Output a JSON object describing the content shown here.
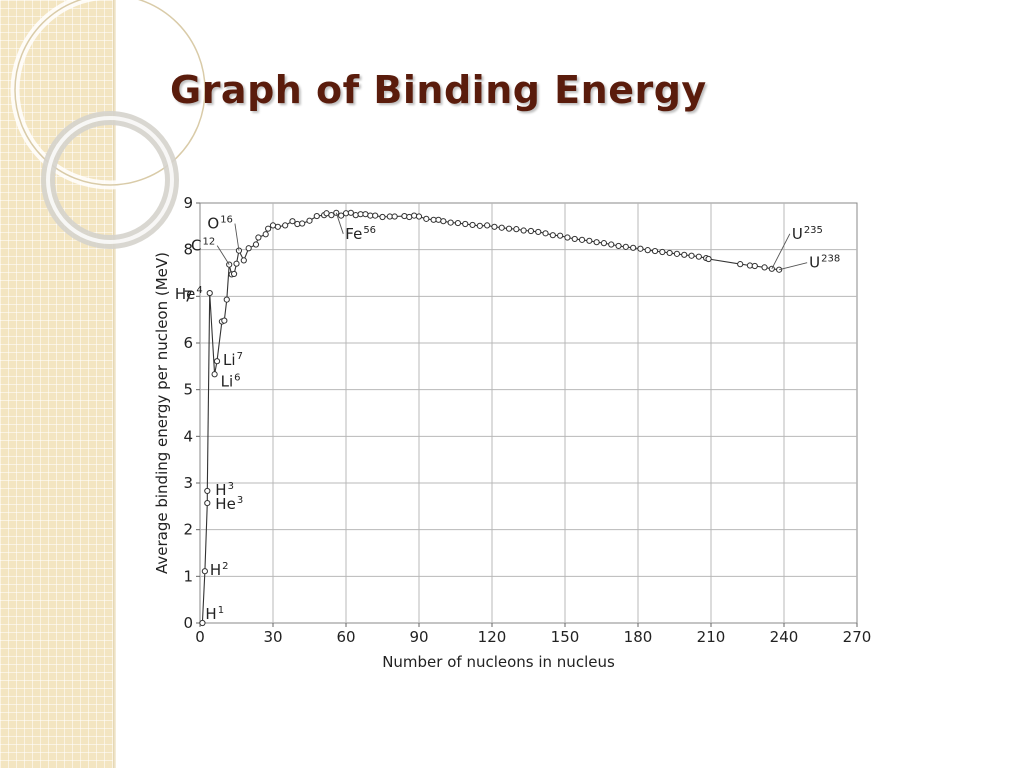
{
  "slide": {
    "title": "Graph of Binding Energy"
  },
  "colors": {
    "title": "#5a1c0c",
    "side_band": "#f3e5c1",
    "grid": "#b8b8b8",
    "curve": "#333333"
  },
  "chart_data": {
    "type": "line",
    "title": "",
    "xlabel": "Number of nucleons in nucleus",
    "ylabel": "Average binding energy per nucleon (MeV)",
    "xlim": [
      0,
      270
    ],
    "ylim": [
      0,
      9
    ],
    "xticks": [
      0,
      30,
      60,
      90,
      120,
      150,
      180,
      210,
      240,
      270
    ],
    "yticks": [
      0,
      1,
      2,
      3,
      4,
      5,
      6,
      7,
      8,
      9
    ],
    "grid": true,
    "series": [
      {
        "points": [
          [
            1,
            0
          ],
          [
            2,
            1.11
          ],
          [
            3,
            2.57
          ],
          [
            3,
            2.83
          ],
          [
            4,
            7.07
          ],
          [
            6,
            5.33
          ],
          [
            7,
            5.61
          ],
          [
            9,
            6.46
          ],
          [
            10,
            6.48
          ],
          [
            11,
            6.93
          ],
          [
            12,
            7.68
          ],
          [
            13,
            7.47
          ],
          [
            14,
            7.48
          ],
          [
            15,
            7.7
          ],
          [
            16,
            7.98
          ],
          [
            18,
            7.77
          ],
          [
            20,
            8.03
          ],
          [
            23,
            8.11
          ],
          [
            24,
            8.26
          ],
          [
            27,
            8.33
          ],
          [
            28,
            8.45
          ],
          [
            30,
            8.52
          ],
          [
            32,
            8.49
          ],
          [
            35,
            8.52
          ],
          [
            38,
            8.61
          ],
          [
            40,
            8.55
          ],
          [
            42,
            8.56
          ],
          [
            45,
            8.62
          ],
          [
            48,
            8.72
          ],
          [
            51,
            8.74
          ],
          [
            52,
            8.78
          ],
          [
            54,
            8.74
          ],
          [
            56,
            8.79
          ],
          [
            58,
            8.73
          ],
          [
            60,
            8.78
          ],
          [
            62,
            8.79
          ],
          [
            64,
            8.74
          ],
          [
            66,
            8.76
          ],
          [
            68,
            8.76
          ],
          [
            70,
            8.73
          ],
          [
            72,
            8.73
          ],
          [
            75,
            8.7
          ],
          [
            78,
            8.71
          ],
          [
            80,
            8.71
          ],
          [
            84,
            8.72
          ],
          [
            86,
            8.7
          ],
          [
            88,
            8.73
          ],
          [
            90,
            8.71
          ],
          [
            93,
            8.66
          ],
          [
            96,
            8.64
          ],
          [
            98,
            8.64
          ],
          [
            100,
            8.61
          ],
          [
            103,
            8.58
          ],
          [
            106,
            8.57
          ],
          [
            109,
            8.55
          ],
          [
            112,
            8.53
          ],
          [
            115,
            8.51
          ],
          [
            118,
            8.52
          ],
          [
            121,
            8.49
          ],
          [
            124,
            8.47
          ],
          [
            127,
            8.45
          ],
          [
            130,
            8.44
          ],
          [
            133,
            8.41
          ],
          [
            136,
            8.4
          ],
          [
            139,
            8.38
          ],
          [
            142,
            8.35
          ],
          [
            145,
            8.31
          ],
          [
            148,
            8.3
          ],
          [
            151,
            8.26
          ],
          [
            154,
            8.23
          ],
          [
            157,
            8.21
          ],
          [
            160,
            8.19
          ],
          [
            163,
            8.16
          ],
          [
            166,
            8.14
          ],
          [
            169,
            8.11
          ],
          [
            172,
            8.08
          ],
          [
            175,
            8.06
          ],
          [
            178,
            8.04
          ],
          [
            181,
            8.02
          ],
          [
            184,
            7.99
          ],
          [
            187,
            7.97
          ],
          [
            190,
            7.95
          ],
          [
            193,
            7.93
          ],
          [
            196,
            7.91
          ],
          [
            199,
            7.89
          ],
          [
            202,
            7.87
          ],
          [
            205,
            7.85
          ],
          [
            208,
            7.82
          ],
          [
            209,
            7.8
          ],
          [
            222,
            7.69
          ],
          [
            226,
            7.66
          ],
          [
            228,
            7.65
          ],
          [
            232,
            7.62
          ],
          [
            235,
            7.59
          ],
          [
            238,
            7.57
          ]
        ]
      }
    ],
    "annotations": [
      {
        "element": "H",
        "mass": "1",
        "x": 1,
        "y": 0
      },
      {
        "element": "H",
        "mass": "2",
        "x": 2,
        "y": 1.11
      },
      {
        "element": "H",
        "mass": "3",
        "x": 3,
        "y": 2.83
      },
      {
        "element": "He",
        "mass": "3",
        "x": 3,
        "y": 2.57
      },
      {
        "element": "He",
        "mass": "4",
        "x": 4,
        "y": 7.07
      },
      {
        "element": "Li",
        "mass": "6",
        "x": 6,
        "y": 5.33
      },
      {
        "element": "Li",
        "mass": "7",
        "x": 7,
        "y": 5.61
      },
      {
        "element": "C",
        "mass": "12",
        "x": 12,
        "y": 7.68
      },
      {
        "element": "O",
        "mass": "16",
        "x": 16,
        "y": 7.98
      },
      {
        "element": "Fe",
        "mass": "56",
        "x": 56,
        "y": 8.79
      },
      {
        "element": "U",
        "mass": "235",
        "x": 235,
        "y": 7.59
      },
      {
        "element": "U",
        "mass": "238",
        "x": 238,
        "y": 7.57
      }
    ]
  }
}
